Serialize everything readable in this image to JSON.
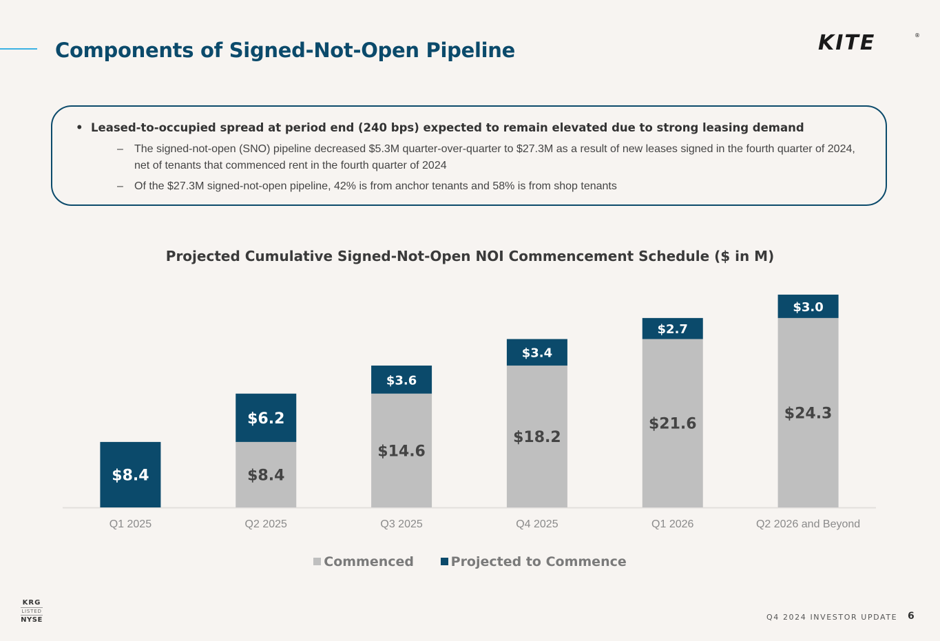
{
  "header": {
    "title": "Components of Signed-Not-Open Pipeline",
    "logo_text": "KITE",
    "logo_mark": "®"
  },
  "callout": {
    "main_bullet": "Leased-to-occupied spread at period end (240 bps) expected to remain elevated due to strong leasing demand",
    "bullet_glyph": "•",
    "dash_glyph": "–",
    "sub_bullets": [
      "The signed-not-open (SNO) pipeline decreased $5.3M quarter-over-quarter to $27.3M as a result of new leases signed in the fourth quarter of 2024, net of tenants that commenced rent in the fourth quarter of 2024",
      "Of the $27.3M signed-not-open pipeline, 42% is from anchor tenants and 58% is from shop tenants"
    ]
  },
  "chart_data": {
    "type": "bar",
    "stacked": true,
    "title": "Projected Cumulative Signed-Not-Open NOI Commencement Schedule ($ in M)",
    "xlabel": "",
    "ylabel": "",
    "ylim": [
      0,
      28
    ],
    "grid": false,
    "legend_position": "bottom",
    "categories": [
      "Q1 2025",
      "Q2 2025",
      "Q3 2025",
      "Q4 2025",
      "Q1 2026",
      "Q2 2026 and Beyond"
    ],
    "series": [
      {
        "name": "Commenced",
        "color": "#bfbfbf",
        "label_color": "#444444",
        "values": [
          0,
          8.4,
          14.6,
          18.2,
          21.6,
          24.3
        ],
        "labels": [
          "",
          "$8.4",
          "$14.6",
          "$18.2",
          "$21.6",
          "$24.3"
        ]
      },
      {
        "name": "Projected to Commence",
        "color": "#0b4a6b",
        "label_color": "#ffffff",
        "values": [
          8.4,
          6.2,
          3.6,
          3.4,
          2.7,
          3.0
        ],
        "labels": [
          "$8.4",
          "$6.2",
          "$3.6",
          "$3.4",
          "$2.7",
          "$3.0"
        ]
      }
    ]
  },
  "footer": {
    "ticker": "KRG",
    "listed": "LISTED",
    "exchange": "NYSE",
    "report": "Q4 2024 INVESTOR UPDATE",
    "page_number": "6"
  }
}
